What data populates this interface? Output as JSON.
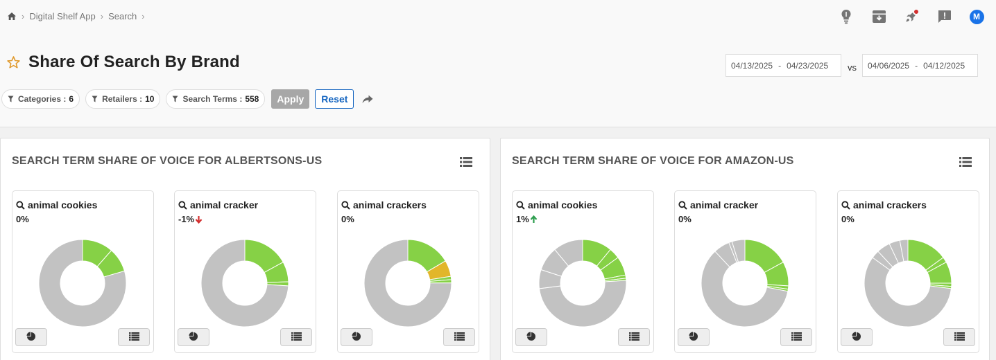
{
  "breadcrumb": {
    "items": [
      "Digital Shelf App",
      "Search"
    ]
  },
  "header": {
    "title": "Share Of Search By Brand",
    "avatar_initial": "M",
    "icons": [
      "lightbulb-icon",
      "archive-icon",
      "rocket-icon",
      "feedback-icon"
    ]
  },
  "dates": {
    "current_start": "04/13/2025",
    "current_end": "04/23/2025",
    "vs_label": "vs",
    "compare_start": "04/06/2025",
    "compare_end": "04/12/2025",
    "dash": "-"
  },
  "filters": [
    {
      "label": "Categories",
      "count": "6"
    },
    {
      "label": "Retailers",
      "count": "10"
    },
    {
      "label": "Search Terms",
      "count": "558"
    }
  ],
  "filter_sep": ":",
  "actions": {
    "apply": "Apply",
    "reset": "Reset"
  },
  "colors": {
    "green": "#86d146",
    "gold": "#e2b62a",
    "gray": "#c2c2c2",
    "down": "#d32f2f",
    "up": "#2e9e4f",
    "accent": "#1565c0"
  },
  "panels": [
    {
      "title": "SEARCH TERM SHARE OF VOICE FOR ALBERTSONS-US",
      "cards": [
        {
          "term": "animal cookies",
          "change": "0%",
          "direction": "none",
          "slices": [
            {
              "v": 0.115,
              "c": "green"
            },
            {
              "v": 0.09,
              "c": "green"
            },
            {
              "v": 0.795,
              "c": "gray"
            }
          ]
        },
        {
          "term": "animal cracker",
          "change": "-1%",
          "direction": "down",
          "slices": [
            {
              "v": 0.17,
              "c": "green"
            },
            {
              "v": 0.075,
              "c": "green"
            },
            {
              "v": 0.015,
              "c": "green"
            },
            {
              "v": 0.74,
              "c": "gray"
            }
          ]
        },
        {
          "term": "animal crackers",
          "change": "0%",
          "direction": "none",
          "slices": [
            {
              "v": 0.165,
              "c": "green"
            },
            {
              "v": 0.06,
              "c": "gold"
            },
            {
              "v": 0.012,
              "c": "green"
            },
            {
              "v": 0.012,
              "c": "green"
            },
            {
              "v": 0.751,
              "c": "gray"
            }
          ]
        }
      ]
    },
    {
      "title": "SEARCH TERM SHARE OF VOICE FOR AMAZON-US",
      "cards": [
        {
          "term": "animal cookies",
          "change": "1%",
          "direction": "up",
          "slices": [
            {
              "v": 0.11,
              "c": "green"
            },
            {
              "v": 0.04,
              "c": "green"
            },
            {
              "v": 0.07,
              "c": "green"
            },
            {
              "v": 0.012,
              "c": "green"
            },
            {
              "v": 0.008,
              "c": "green"
            },
            {
              "v": 0.49,
              "c": "gray"
            },
            {
              "v": 0.07,
              "c": "gray"
            },
            {
              "v": 0.09,
              "c": "gray"
            },
            {
              "v": 0.11,
              "c": "gray"
            }
          ]
        },
        {
          "term": "animal cracker",
          "change": "0%",
          "direction": "none",
          "slices": [
            {
              "v": 0.17,
              "c": "green"
            },
            {
              "v": 0.09,
              "c": "green"
            },
            {
              "v": 0.012,
              "c": "green"
            },
            {
              "v": 0.008,
              "c": "green"
            },
            {
              "v": 0.6,
              "c": "gray"
            },
            {
              "v": 0.06,
              "c": "gray"
            },
            {
              "v": 0.012,
              "c": "gray"
            },
            {
              "v": 0.048,
              "c": "gray"
            }
          ]
        },
        {
          "term": "animal crackers",
          "change": "0%",
          "direction": "none",
          "slices": [
            {
              "v": 0.15,
              "c": "green"
            },
            {
              "v": 0.02,
              "c": "green"
            },
            {
              "v": 0.08,
              "c": "green"
            },
            {
              "v": 0.012,
              "c": "green"
            },
            {
              "v": 0.008,
              "c": "green"
            },
            {
              "v": 0.58,
              "c": "gray"
            },
            {
              "v": 0.03,
              "c": "gray"
            },
            {
              "v": 0.05,
              "c": "gray"
            },
            {
              "v": 0.04,
              "c": "gray"
            },
            {
              "v": 0.03,
              "c": "gray"
            }
          ]
        }
      ]
    }
  ]
}
